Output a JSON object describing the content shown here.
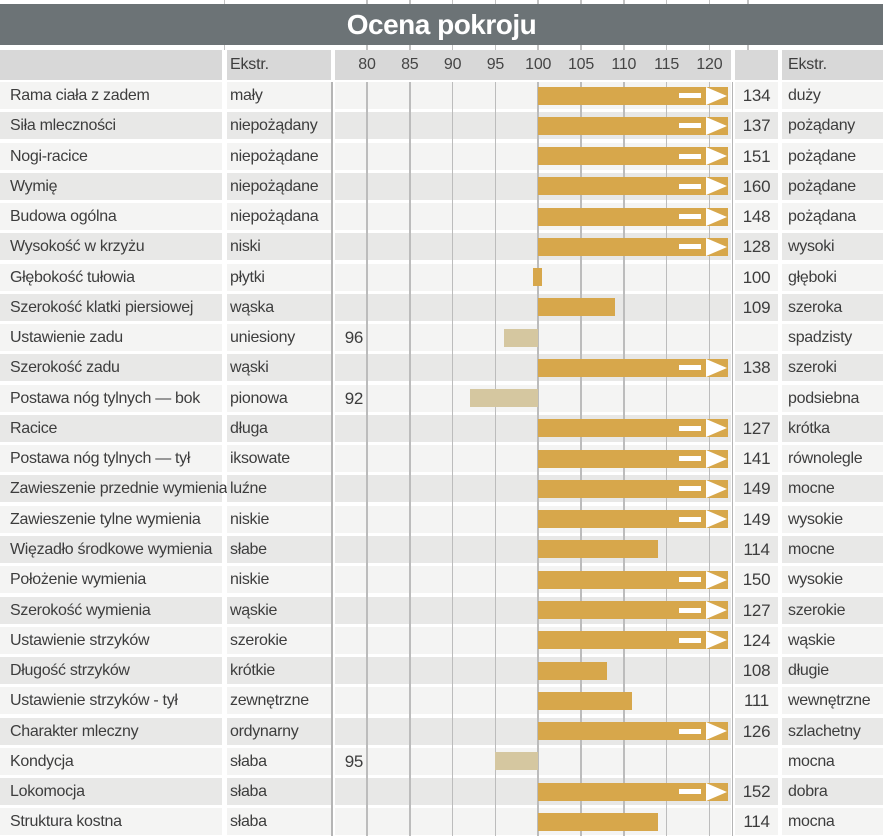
{
  "title": "Ocena pokroju",
  "header": {
    "left_extreme_label": "Ekstr.",
    "right_extreme_label": "Ekstr."
  },
  "colors": {
    "title_bg": "#6c7376",
    "header_bg": "#d8d8d8",
    "row_light": "#f4f4f3",
    "row_dark": "#e8e8e7",
    "bar_above": "#d7a74b",
    "bar_below": "#d5c7a0",
    "gridline": "#bcbcbc",
    "title_text": "#ffffff",
    "body_text": "#3d3d3d"
  },
  "chart_data": {
    "type": "bar",
    "orientation": "horizontal",
    "title": "Ocena pokroju",
    "baseline": 100,
    "axis_range": [
      80,
      120
    ],
    "axis_ticks": [
      80,
      85,
      90,
      95,
      100,
      105,
      110,
      115,
      120
    ],
    "arrow_threshold": 120,
    "legend_position": "none",
    "grid": true,
    "rows": [
      {
        "trait": "Rama ciała z zadem",
        "left_extreme": "mały",
        "value": 134,
        "right_extreme": "duży"
      },
      {
        "trait": "Siła mleczności",
        "left_extreme": "niepożądany",
        "value": 137,
        "right_extreme": "pożądany"
      },
      {
        "trait": "Nogi-racice",
        "left_extreme": "niepożądane",
        "value": 151,
        "right_extreme": "pożądane"
      },
      {
        "trait": "Wymię",
        "left_extreme": "niepożądane",
        "value": 160,
        "right_extreme": "pożądane"
      },
      {
        "trait": "Budowa ogólna",
        "left_extreme": "niepożądana",
        "value": 148,
        "right_extreme": "pożądana"
      },
      {
        "trait": "Wysokość w krzyżu",
        "left_extreme": "niski",
        "value": 128,
        "right_extreme": "wysoki"
      },
      {
        "trait": "Głębokość tułowia",
        "left_extreme": "płytki",
        "value": 100,
        "right_extreme": "głęboki"
      },
      {
        "trait": "Szerokość klatki piersiowej",
        "left_extreme": "wąska",
        "value": 109,
        "right_extreme": "szeroka"
      },
      {
        "trait": "Ustawienie zadu",
        "left_extreme": "uniesiony",
        "value": 96,
        "right_extreme": "spadzisty"
      },
      {
        "trait": "Szerokość zadu",
        "left_extreme": "wąski",
        "value": 138,
        "right_extreme": "szeroki"
      },
      {
        "trait": "Postawa nóg tylnych — bok",
        "left_extreme": "pionowa",
        "value": 92,
        "right_extreme": "podsiebna"
      },
      {
        "trait": "Racice",
        "left_extreme": "długa",
        "value": 127,
        "right_extreme": "krótka"
      },
      {
        "trait": "Postawa nóg tylnych — tył",
        "left_extreme": "iksowate",
        "value": 141,
        "right_extreme": "równolegle"
      },
      {
        "trait": "Zawieszenie przednie wymienia",
        "left_extreme": "luźne",
        "value": 149,
        "right_extreme": "mocne"
      },
      {
        "trait": "Zawieszenie tylne wymienia",
        "left_extreme": "niskie",
        "value": 149,
        "right_extreme": "wysokie"
      },
      {
        "trait": "Więzadło środkowe wymienia",
        "left_extreme": "słabe",
        "value": 114,
        "right_extreme": "mocne"
      },
      {
        "trait": "Położenie wymienia",
        "left_extreme": "niskie",
        "value": 150,
        "right_extreme": "wysokie"
      },
      {
        "trait": "Szerokość wymienia",
        "left_extreme": "wąskie",
        "value": 127,
        "right_extreme": "szerokie"
      },
      {
        "trait": "Ustawienie strzyków",
        "left_extreme": "szerokie",
        "value": 124,
        "right_extreme": "wąskie"
      },
      {
        "trait": "Długość strzyków",
        "left_extreme": "krótkie",
        "value": 108,
        "right_extreme": "długie"
      },
      {
        "trait": "Ustawienie strzyków - tył",
        "left_extreme": "zewnętrzne",
        "value": 111,
        "right_extreme": "wewnętrzne"
      },
      {
        "trait": "Charakter mleczny",
        "left_extreme": "ordynarny",
        "value": 126,
        "right_extreme": "szlachetny"
      },
      {
        "trait": "Kondycja",
        "left_extreme": "słaba",
        "value": 95,
        "right_extreme": "mocna"
      },
      {
        "trait": "Lokomocja",
        "left_extreme": "słaba",
        "value": 152,
        "right_extreme": "dobra"
      },
      {
        "trait": "Struktura kostna",
        "left_extreme": "słaba",
        "value": 114,
        "right_extreme": "mocna"
      }
    ]
  }
}
